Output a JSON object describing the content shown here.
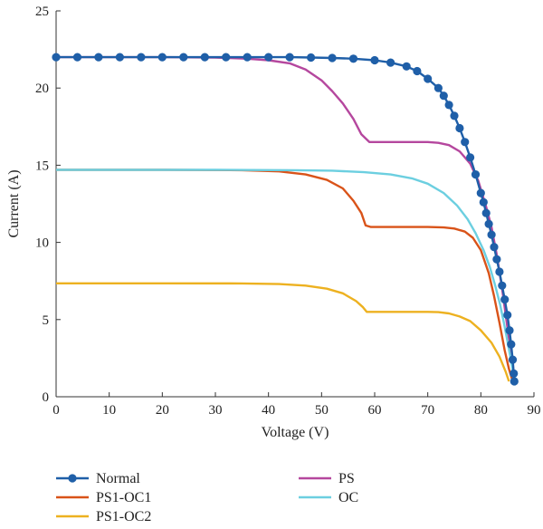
{
  "chart_data": {
    "type": "line",
    "title": "",
    "xlabel": "Voltage (V)",
    "ylabel": "Current (A)",
    "xlim": [
      0,
      90
    ],
    "ylim": [
      0,
      25
    ],
    "xticks": [
      0,
      10,
      20,
      30,
      40,
      50,
      60,
      70,
      80,
      90
    ],
    "yticks": [
      0,
      5,
      10,
      15,
      20,
      25
    ],
    "grid": false,
    "legend_position": "bottom",
    "series": [
      {
        "name": "Normal",
        "color": "#1f5fa8",
        "marker": "circle",
        "points": [
          [
            0,
            22.0
          ],
          [
            4,
            22.0
          ],
          [
            8,
            22.0
          ],
          [
            12,
            22.0
          ],
          [
            16,
            22.0
          ],
          [
            20,
            22.0
          ],
          [
            24,
            22.0
          ],
          [
            28,
            22.0
          ],
          [
            32,
            22.0
          ],
          [
            36,
            22.0
          ],
          [
            40,
            22.0
          ],
          [
            44,
            22.0
          ],
          [
            48,
            21.98
          ],
          [
            52,
            21.95
          ],
          [
            56,
            21.9
          ],
          [
            60,
            21.8
          ],
          [
            63,
            21.65
          ],
          [
            66,
            21.4
          ],
          [
            68,
            21.1
          ],
          [
            70,
            20.6
          ],
          [
            72,
            20.0
          ],
          [
            73,
            19.5
          ],
          [
            74,
            18.9
          ],
          [
            75,
            18.2
          ],
          [
            76,
            17.4
          ],
          [
            77,
            16.5
          ],
          [
            78,
            15.5
          ],
          [
            79,
            14.4
          ],
          [
            80,
            13.2
          ],
          [
            80.5,
            12.6
          ],
          [
            81,
            11.9
          ],
          [
            81.5,
            11.2
          ],
          [
            82,
            10.5
          ],
          [
            82.5,
            9.7
          ],
          [
            83,
            8.9
          ],
          [
            83.5,
            8.1
          ],
          [
            84,
            7.2
          ],
          [
            84.5,
            6.3
          ],
          [
            85,
            5.3
          ],
          [
            85.4,
            4.3
          ],
          [
            85.7,
            3.4
          ],
          [
            86,
            2.4
          ],
          [
            86.2,
            1.5
          ],
          [
            86.3,
            1.0
          ]
        ]
      },
      {
        "name": "PS1-OC1",
        "color": "#d95319",
        "marker": "none",
        "points": [
          [
            0,
            14.7
          ],
          [
            20,
            14.7
          ],
          [
            35,
            14.68
          ],
          [
            42,
            14.6
          ],
          [
            47,
            14.4
          ],
          [
            51,
            14.05
          ],
          [
            54,
            13.5
          ],
          [
            56,
            12.7
          ],
          [
            57.5,
            11.9
          ],
          [
            58.3,
            11.1
          ],
          [
            59.3,
            11.0
          ],
          [
            65,
            11.0
          ],
          [
            70,
            11.0
          ],
          [
            73,
            10.97
          ],
          [
            75,
            10.9
          ],
          [
            77,
            10.7
          ],
          [
            78.5,
            10.3
          ],
          [
            80,
            9.5
          ],
          [
            81.5,
            8.0
          ],
          [
            82.5,
            6.5
          ],
          [
            83.5,
            4.8
          ],
          [
            84.5,
            3.0
          ],
          [
            85.3,
            1.8
          ],
          [
            86,
            1.0
          ]
        ]
      },
      {
        "name": "PS1-OC2",
        "color": "#edb120",
        "marker": "none",
        "points": [
          [
            0,
            7.35
          ],
          [
            20,
            7.35
          ],
          [
            35,
            7.34
          ],
          [
            42,
            7.3
          ],
          [
            47,
            7.2
          ],
          [
            51,
            7.0
          ],
          [
            54,
            6.7
          ],
          [
            56.5,
            6.2
          ],
          [
            57.8,
            5.8
          ],
          [
            58.5,
            5.5
          ],
          [
            65,
            5.5
          ],
          [
            70,
            5.5
          ],
          [
            72,
            5.48
          ],
          [
            74,
            5.4
          ],
          [
            76,
            5.2
          ],
          [
            78,
            4.9
          ],
          [
            80,
            4.3
          ],
          [
            82,
            3.5
          ],
          [
            83.5,
            2.6
          ],
          [
            84.7,
            1.6
          ],
          [
            85.3,
            1.0
          ]
        ]
      },
      {
        "name": "PS",
        "color": "#b5479e",
        "marker": "none",
        "points": [
          [
            0,
            22.0
          ],
          [
            20,
            22.0
          ],
          [
            30,
            21.98
          ],
          [
            36,
            21.9
          ],
          [
            40,
            21.8
          ],
          [
            44,
            21.6
          ],
          [
            47,
            21.2
          ],
          [
            50,
            20.5
          ],
          [
            52,
            19.8
          ],
          [
            54,
            19.0
          ],
          [
            56,
            18.0
          ],
          [
            57.5,
            17.0
          ],
          [
            59,
            16.5
          ],
          [
            65,
            16.5
          ],
          [
            70,
            16.5
          ],
          [
            72,
            16.45
          ],
          [
            74,
            16.3
          ],
          [
            76,
            15.9
          ],
          [
            78,
            15.1
          ],
          [
            79.5,
            14.0
          ],
          [
            81,
            12.3
          ],
          [
            82,
            11.0
          ],
          [
            83,
            9.2
          ],
          [
            84,
            7.0
          ],
          [
            84.8,
            5.0
          ],
          [
            85.5,
            3.2
          ],
          [
            86,
            1.8
          ],
          [
            86.3,
            1.0
          ]
        ]
      },
      {
        "name": "OC",
        "color": "#6ccfe0",
        "marker": "none",
        "points": [
          [
            0,
            14.7
          ],
          [
            30,
            14.7
          ],
          [
            45,
            14.68
          ],
          [
            52,
            14.65
          ],
          [
            58,
            14.55
          ],
          [
            63,
            14.4
          ],
          [
            67,
            14.15
          ],
          [
            70,
            13.8
          ],
          [
            73,
            13.2
          ],
          [
            75.5,
            12.4
          ],
          [
            77.5,
            11.5
          ],
          [
            79,
            10.6
          ],
          [
            80.5,
            9.5
          ],
          [
            81.7,
            8.4
          ],
          [
            82.7,
            7.2
          ],
          [
            83.6,
            6.0
          ],
          [
            84.4,
            4.7
          ],
          [
            85,
            3.6
          ],
          [
            85.6,
            2.5
          ],
          [
            86.1,
            1.5
          ],
          [
            86.3,
            1.0
          ]
        ]
      }
    ]
  }
}
